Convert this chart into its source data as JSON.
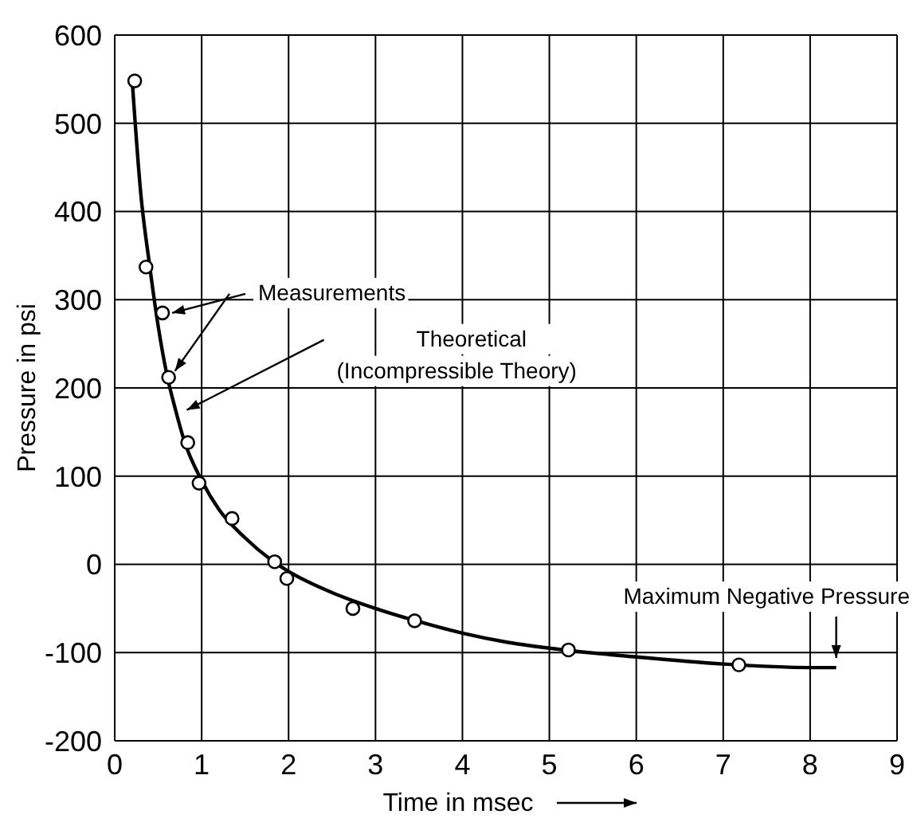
{
  "chart_data": {
    "type": "line",
    "xlabel": "Time in msec",
    "ylabel": "Pressure in psi",
    "xlim": [
      0,
      9
    ],
    "xticks": [
      0,
      1,
      2,
      3,
      4,
      5,
      6,
      7,
      8,
      9
    ],
    "ylim": [
      -200,
      600
    ],
    "yticks": [
      -200,
      -100,
      0,
      100,
      200,
      300,
      400,
      500,
      600
    ],
    "grid": true,
    "legend": false,
    "series": [
      {
        "type": "line",
        "color": "#000000",
        "marker": "none",
        "line_style": "solid",
        "x": [
          0.2,
          0.3,
          0.4,
          0.5,
          0.6,
          0.7,
          0.8,
          1.0,
          1.2,
          1.5,
          1.8,
          2.0,
          2.5,
          3.0,
          3.5,
          4.0,
          4.5,
          5.0,
          6.0,
          7.0,
          8.0,
          8.3
        ],
        "values": [
          550,
          420,
          340,
          270,
          215,
          175,
          140,
          95,
          62,
          30,
          5,
          -8,
          -32,
          -50,
          -65,
          -78,
          -88,
          -95,
          -105,
          -113,
          -117,
          -117
        ]
      },
      {
        "type": "scatter",
        "color": "#000000",
        "marker": "circle",
        "x": [
          0.23,
          0.36,
          0.55,
          0.62,
          0.84,
          0.97,
          1.35,
          1.84,
          1.98,
          2.74,
          3.45,
          5.22,
          7.18
        ],
        "values": [
          548,
          337,
          285,
          212,
          138,
          92,
          52,
          3,
          -16,
          -50,
          -64,
          -97,
          -114
        ]
      }
    ],
    "annotations": [
      {
        "text": "Measurements",
        "x": 0.55,
        "y": 285
      },
      {
        "text": "Theoretical\n(Incompressible Theory)",
        "x": 0.72,
        "y": 175
      },
      {
        "text": "Maximum Negative Pressure",
        "x": 8.3,
        "y": -117
      }
    ]
  }
}
